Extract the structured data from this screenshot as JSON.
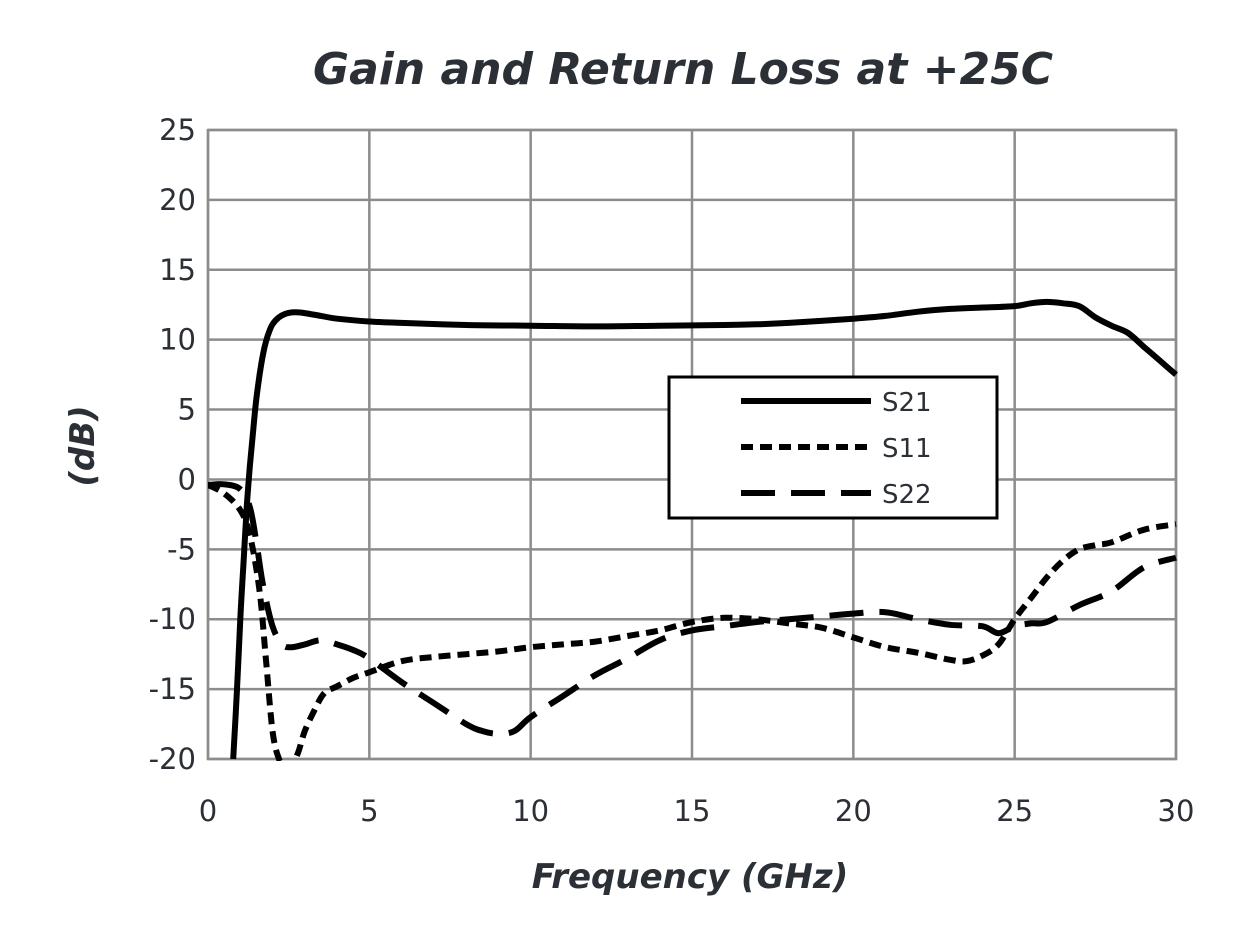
{
  "chart_data": {
    "type": "line",
    "title": "Gain and Return Loss at +25C",
    "xlabel": "Frequency (GHz)",
    "ylabel": "(dB)",
    "xlim": [
      0,
      30
    ],
    "ylim": [
      -20,
      25
    ],
    "x_ticks": [
      "0",
      "5",
      "10",
      "15",
      "20",
      "25",
      "30"
    ],
    "y_ticks": [
      "25",
      "20",
      "15",
      "10",
      "5",
      "0",
      "-5",
      "-10",
      "-15",
      "-20"
    ],
    "grid": true,
    "legend_position": "center-right",
    "series": [
      {
        "name": "S21",
        "style": "solid",
        "color": "#000000",
        "x": [
          0.78,
          0.9,
          1.0,
          1.1,
          1.2,
          1.3,
          1.4,
          1.5,
          1.6,
          1.7,
          1.8,
          1.9,
          2.0,
          2.2,
          2.4,
          2.6,
          2.8,
          3.0,
          3.5,
          4.0,
          5.0,
          6.0,
          8.0,
          10.0,
          12.0,
          14.0,
          16.0,
          17.0,
          18.0,
          20.0,
          21.0,
          22.0,
          23.0,
          24.0,
          25.0,
          25.5,
          26.0,
          26.5,
          27.0,
          27.5,
          28.0,
          28.5,
          29.0,
          29.5,
          30.0
        ],
        "y": [
          -20,
          -15,
          -10,
          -6,
          -2,
          1,
          3.5,
          5.8,
          7.5,
          8.9,
          9.9,
          10.6,
          11.1,
          11.6,
          11.85,
          11.95,
          11.95,
          11.9,
          11.7,
          11.5,
          11.3,
          11.2,
          11.05,
          11.0,
          10.95,
          11.0,
          11.05,
          11.1,
          11.2,
          11.5,
          11.7,
          12.0,
          12.2,
          12.3,
          12.4,
          12.6,
          12.7,
          12.6,
          12.4,
          11.6,
          11.0,
          10.5,
          9.5,
          8.5,
          7.5
        ]
      },
      {
        "name": "S11",
        "style": "short-dash",
        "color": "#000000",
        "x": [
          0.0,
          0.5,
          1.0,
          1.3,
          1.6,
          1.8,
          2.0,
          2.2,
          2.4,
          2.6,
          2.8,
          3.0,
          3.3,
          3.6,
          4.0,
          4.5,
          5.0,
          6.0,
          7.0,
          8.0,
          9.0,
          10.0,
          11.0,
          12.0,
          13.0,
          14.0,
          15.0,
          16.0,
          17.0,
          18.0,
          19.0,
          20.0,
          21.0,
          22.0,
          23.0,
          23.5,
          24.0,
          24.5,
          25.0,
          25.5,
          26.0,
          26.5,
          27.0,
          27.5,
          28.0,
          29.0,
          30.0
        ],
        "y": [
          -0.4,
          -1.0,
          -2.2,
          -4.0,
          -8.0,
          -13.0,
          -18.0,
          -20.0,
          -20.5,
          -20.5,
          -19.5,
          -18.0,
          -16.5,
          -15.3,
          -14.8,
          -14.2,
          -13.8,
          -13.0,
          -12.7,
          -12.5,
          -12.3,
          -12.0,
          -11.8,
          -11.6,
          -11.2,
          -10.8,
          -10.2,
          -9.9,
          -10.0,
          -10.3,
          -10.6,
          -11.3,
          -12.0,
          -12.4,
          -12.9,
          -13.0,
          -12.6,
          -11.8,
          -10.0,
          -8.5,
          -7.0,
          -5.8,
          -5.0,
          -4.7,
          -4.5,
          -3.6,
          -3.2
        ]
      },
      {
        "name": "S22",
        "style": "long-dash",
        "color": "#000000",
        "x": [
          0.0,
          0.5,
          1.0,
          1.3,
          1.5,
          1.7,
          2.0,
          2.3,
          2.6,
          3.0,
          3.5,
          4.0,
          4.5,
          5.0,
          6.0,
          7.0,
          8.0,
          8.5,
          9.0,
          9.5,
          10.0,
          11.0,
          12.0,
          13.0,
          14.0,
          15.0,
          16.0,
          17.0,
          18.0,
          19.0,
          20.0,
          21.0,
          22.0,
          23.0,
          24.0,
          24.5,
          25.0,
          25.5,
          26.0,
          27.0,
          28.0,
          29.0,
          30.0
        ],
        "y": [
          -0.4,
          -0.35,
          -0.7,
          -2.0,
          -4.5,
          -7.5,
          -10.5,
          -11.8,
          -12.0,
          -11.8,
          -11.5,
          -11.8,
          -12.2,
          -12.8,
          -14.5,
          -16.0,
          -17.5,
          -18.0,
          -18.2,
          -18.0,
          -17.0,
          -15.5,
          -14.0,
          -12.8,
          -11.5,
          -10.8,
          -10.5,
          -10.2,
          -10.0,
          -9.8,
          -9.6,
          -9.5,
          -10.0,
          -10.4,
          -10.5,
          -11.0,
          -10.5,
          -10.3,
          -10.2,
          -9.0,
          -8.0,
          -6.3,
          -5.6
        ]
      }
    ]
  }
}
